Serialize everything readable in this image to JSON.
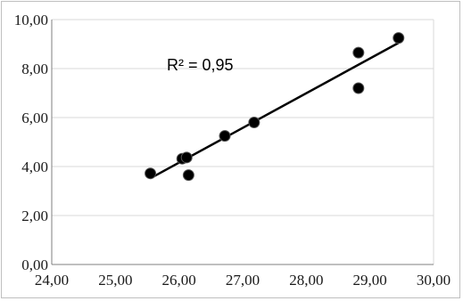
{
  "chart_data": {
    "type": "scatter",
    "title": "",
    "xlabel": "",
    "ylabel": "",
    "xlim": [
      24,
      30
    ],
    "ylim": [
      0,
      10
    ],
    "x_ticks": [
      "24,00",
      "25,00",
      "26,00",
      "27,00",
      "28,00",
      "29,00",
      "30,00"
    ],
    "y_ticks": [
      "0,00",
      "2,00",
      "4,00",
      "6,00",
      "8,00",
      "10,00"
    ],
    "grid": "horizontal",
    "legend": "none",
    "series": [
      {
        "points": [
          {
            "x": 25.55,
            "y": 3.72
          },
          {
            "x": 26.05,
            "y": 4.32
          },
          {
            "x": 26.12,
            "y": 4.37
          },
          {
            "x": 26.15,
            "y": 3.65
          },
          {
            "x": 26.72,
            "y": 5.25
          },
          {
            "x": 27.18,
            "y": 5.8
          },
          {
            "x": 28.82,
            "y": 8.65
          },
          {
            "x": 28.82,
            "y": 7.2
          },
          {
            "x": 29.45,
            "y": 9.25
          }
        ],
        "marker_color": "#000000"
      }
    ],
    "trendline": {
      "type": "linear",
      "from": {
        "x": 25.55,
        "y": 3.52
      },
      "to": {
        "x": 29.45,
        "y": 9.05
      },
      "color": "#000000"
    },
    "annotation": "R² = 0,95"
  }
}
